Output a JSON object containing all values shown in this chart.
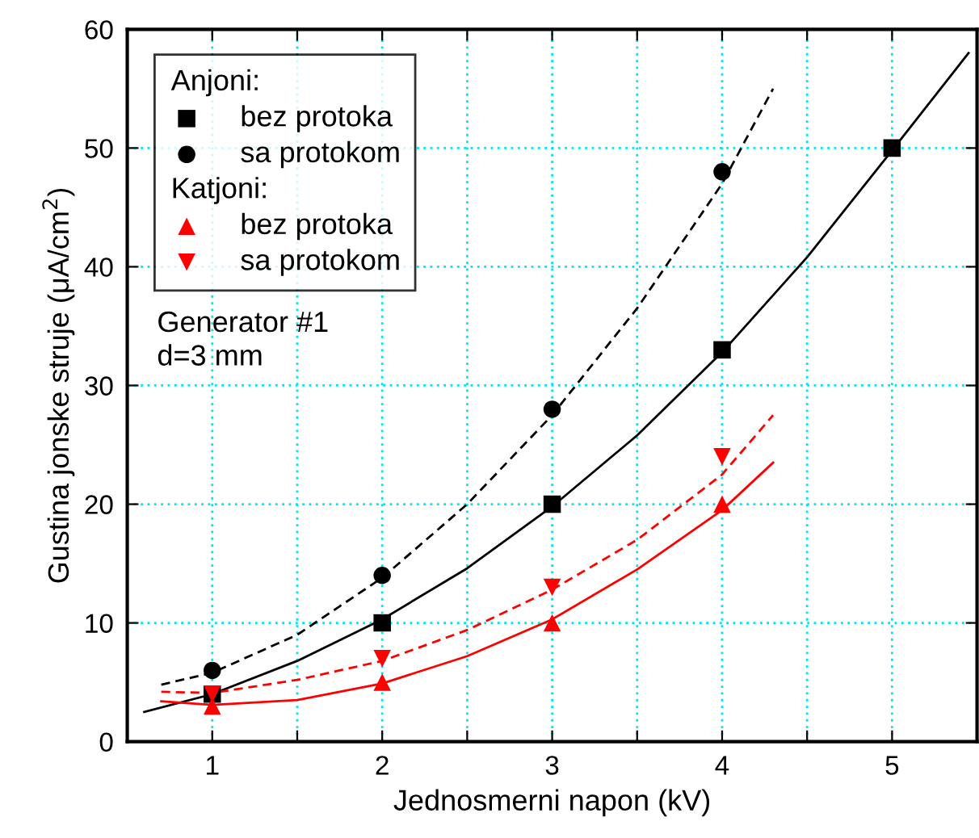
{
  "chart_data": {
    "type": "scatter",
    "xlabel": "Jednosmerni napon (kV)",
    "ylabel": "Gustina jonske struje (μA/cm$^{2}$)",
    "xlim": [
      0.5,
      5.5
    ],
    "ylim": [
      0,
      60
    ],
    "xticks": [
      1,
      {
        "value": 1.5,
        "label": null
      },
      2,
      {
        "value": 2.5,
        "label": null
      },
      3,
      {
        "value": 3.5,
        "label": null
      },
      4,
      {
        "value": 4.5,
        "label": null
      },
      5
    ],
    "yticks": [
      0,
      10,
      20,
      30,
      40,
      50,
      60
    ],
    "grid": true,
    "legend": "top left",
    "annotations": [
      "Anjoni:",
      "Katjoni:",
      "Generator #1\nd=3 mm"
    ],
    "series": [
      {
        "name": "bez protoka",
        "marker": "square",
        "color": "#000000",
        "x": [
          1,
          2,
          3,
          4,
          5
        ],
        "values": [
          4,
          10,
          20,
          33,
          50
        ]
      },
      {
        "name": "sa protokom",
        "marker": "circle",
        "color": "#000000",
        "x": [
          1,
          2,
          3,
          4
        ],
        "values": [
          6,
          14,
          28,
          48
        ]
      },
      {
        "name": "bez protoka",
        "marker": "triangle",
        "color": "#ff0000",
        "x": [
          1,
          2,
          3,
          4
        ],
        "values": [
          3,
          5,
          10,
          20
        ]
      },
      {
        "name": "sa protokom",
        "marker": "triangle_down",
        "color": "#ff0000",
        "x": [
          1,
          2,
          3,
          4
        ],
        "values": [
          4,
          7,
          13,
          24
        ]
      },
      {
        "type": "line",
        "line_style": "solid",
        "color": "#000000",
        "x": [
          0.6,
          1,
          1.5,
          2,
          2.5,
          3,
          3.5,
          4,
          4.5,
          5,
          5.45
        ],
        "values": [
          2.5,
          4,
          6.8,
          10.3,
          14.6,
          19.8,
          25.8,
          32.8,
          40.8,
          49.8,
          58
        ]
      },
      {
        "type": "line",
        "line_style": "dashed",
        "color": "#000000",
        "x": [
          0.7,
          1,
          1.5,
          2,
          2.5,
          3,
          3.5,
          4,
          4.3
        ],
        "values": [
          4.8,
          5.8,
          9,
          13.8,
          20,
          27.5,
          36.5,
          47,
          55
        ]
      },
      {
        "type": "line",
        "line_style": "solid",
        "color": "#ff0000",
        "x": [
          0.7,
          1,
          1.5,
          2,
          2.5,
          3,
          3.5,
          4,
          4.3
        ],
        "values": [
          3.4,
          3.1,
          3.5,
          4.9,
          7.2,
          10.3,
          14.5,
          19.5,
          23.5
        ]
      },
      {
        "type": "line",
        "line_style": "dashed",
        "color": "#ff0000",
        "x": [
          0.7,
          1,
          1.5,
          2,
          2.5,
          3,
          3.5,
          4,
          4.3
        ],
        "values": [
          4.2,
          4.1,
          5.2,
          6.8,
          9.4,
          12.8,
          17,
          22.5,
          27.5
        ]
      }
    ]
  }
}
